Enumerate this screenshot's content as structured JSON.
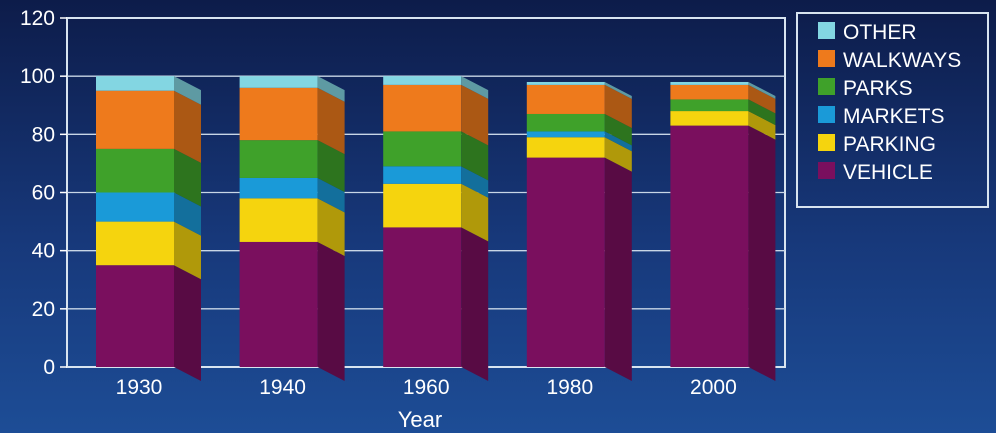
{
  "chart_data": {
    "type": "bar",
    "stacked": true,
    "style": "3d",
    "xlabel": "Year",
    "ylabel": "",
    "ylim": [
      0,
      120
    ],
    "yticks": [
      0,
      20,
      40,
      60,
      80,
      100,
      120
    ],
    "grid": true,
    "legend_position": "right",
    "categories": [
      "1930",
      "1940",
      "1960",
      "1980",
      "2000"
    ],
    "series": [
      {
        "name": "VEHICLE",
        "color": "#7a0f5e",
        "values": [
          35,
          43,
          48,
          72,
          83
        ]
      },
      {
        "name": "PARKING",
        "color": "#f5d40e",
        "values": [
          15,
          15,
          15,
          7,
          5
        ]
      },
      {
        "name": "MARKETS",
        "color": "#1a9ad8",
        "values": [
          10,
          7,
          6,
          2,
          0
        ]
      },
      {
        "name": "PARKS",
        "color": "#3fa12a",
        "values": [
          15,
          13,
          12,
          6,
          4
        ]
      },
      {
        "name": "WALKWAYS",
        "color": "#ee7a1c",
        "values": [
          20,
          18,
          16,
          10,
          5
        ]
      },
      {
        "name": "OTHER",
        "color": "#83d6e2",
        "values": [
          5,
          4,
          3,
          1,
          1
        ]
      }
    ],
    "legend_order": [
      "OTHER",
      "WALKWAYS",
      "PARKS",
      "MARKETS",
      "PARKING",
      "VEHICLE"
    ]
  }
}
